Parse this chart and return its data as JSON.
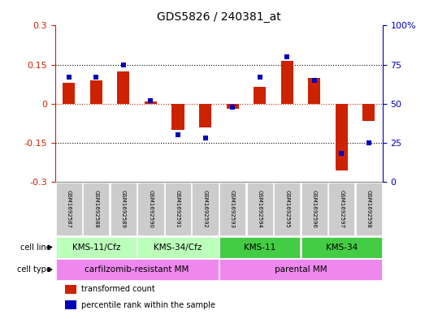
{
  "title": "GDS5826 / 240381_at",
  "samples": [
    "GSM1692587",
    "GSM1692588",
    "GSM1692589",
    "GSM1692590",
    "GSM1692591",
    "GSM1692592",
    "GSM1692593",
    "GSM1692594",
    "GSM1692595",
    "GSM1692596",
    "GSM1692597",
    "GSM1692598"
  ],
  "transformed_count": [
    0.08,
    0.09,
    0.125,
    0.01,
    -0.1,
    -0.09,
    -0.02,
    0.065,
    0.165,
    0.1,
    -0.255,
    -0.065
  ],
  "percentile_rank": [
    67,
    67,
    75,
    52,
    30,
    28,
    48,
    67,
    80,
    65,
    18,
    25
  ],
  "ylim_left": [
    -0.3,
    0.3
  ],
  "ylim_right": [
    0,
    100
  ],
  "yticks_left": [
    -0.3,
    -0.15,
    0.0,
    0.15,
    0.3
  ],
  "yticks_right": [
    0,
    25,
    50,
    75,
    100
  ],
  "cell_line_groups": [
    {
      "label": "KMS-11/Cfz",
      "start": 0,
      "end": 3,
      "color": "#aaffaa"
    },
    {
      "label": "KMS-34/Cfz",
      "start": 3,
      "end": 6,
      "color": "#aaffaa"
    },
    {
      "label": "KMS-11",
      "start": 6,
      "end": 9,
      "color": "#55ee55"
    },
    {
      "label": "KMS-34",
      "start": 9,
      "end": 12,
      "color": "#55ee55"
    }
  ],
  "cell_type_groups": [
    {
      "label": "carfilzomib-resistant MM",
      "start": 0,
      "end": 6,
      "color": "#ee88ee"
    },
    {
      "label": "parental MM",
      "start": 6,
      "end": 12,
      "color": "#ee88ee"
    }
  ],
  "bar_color": "#cc2200",
  "dot_color": "#0000bb",
  "legend_tc": "transformed count",
  "legend_pr": "percentile rank within the sample",
  "left_axis_color": "#cc2200",
  "right_axis_color": "#0000bb",
  "grid_dotted_color": "#000000",
  "zero_line_color": "#cc2200",
  "sample_box_color": "#cccccc",
  "cell_line_light": "#bbffbb",
  "cell_line_dark": "#44cc44",
  "cell_type_color": "#ee88ee"
}
